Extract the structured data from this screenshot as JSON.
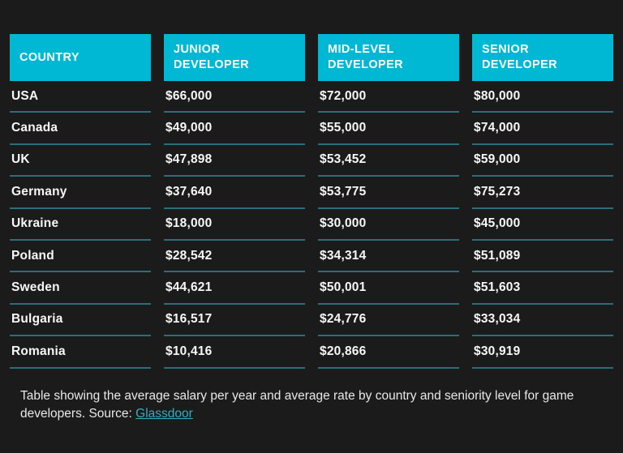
{
  "colors": {
    "background": "#1b1b1b",
    "header_bg": "#00b8d4",
    "header_text": "#ffffff",
    "cell_text": "#f7f7f7",
    "divider": "#2a6e7c",
    "link": "#35aec2"
  },
  "chart_data": {
    "type": "table",
    "columns": [
      "COUNTRY",
      "JUNIOR DEVELOPER",
      "MID-LEVEL DEVELOPER",
      "SENIOR DEVELOPER"
    ],
    "rows": [
      [
        "USA",
        "$66,000",
        "$72,000",
        "$80,000"
      ],
      [
        "Canada",
        "$49,000",
        "$55,000",
        "$74,000"
      ],
      [
        "UK",
        "$47,898",
        "$53,452",
        "$59,000"
      ],
      [
        "Germany",
        "$37,640",
        "$53,775",
        "$75,273"
      ],
      [
        "Ukraine",
        "$18,000",
        "$30,000",
        "$45,000"
      ],
      [
        "Poland",
        "$28,542",
        "$34,314",
        "$51,089"
      ],
      [
        "Sweden",
        "$44,621",
        "$50,001",
        "$51,603"
      ],
      [
        "Bulgaria",
        "$16,517",
        "$24,776",
        "$33,034"
      ],
      [
        "Romania",
        "$10,416",
        "$20,866",
        "$30,919"
      ]
    ],
    "values_usd": {
      "categories": [
        "USA",
        "Canada",
        "UK",
        "Germany",
        "Ukraine",
        "Poland",
        "Sweden",
        "Bulgaria",
        "Romania"
      ],
      "series": [
        {
          "name": "Junior Developer",
          "values": [
            66000,
            49000,
            47898,
            37640,
            18000,
            28542,
            44621,
            16517,
            10416
          ]
        },
        {
          "name": "Mid-Level Developer",
          "values": [
            72000,
            55000,
            53452,
            53775,
            30000,
            34314,
            50001,
            24776,
            20866
          ]
        },
        {
          "name": "Senior Developer",
          "values": [
            80000,
            74000,
            59000,
            75273,
            45000,
            51089,
            51603,
            33034,
            30919
          ]
        }
      ]
    },
    "title": "",
    "caption": "Table showing the average salary per year and average rate by country and seniority level for game developers. Source: Glassdoor"
  },
  "caption": {
    "text": "Table showing the average salary per year and average rate by country and seniority level for game developers. Source:",
    "link_label": "Glassdoor"
  }
}
